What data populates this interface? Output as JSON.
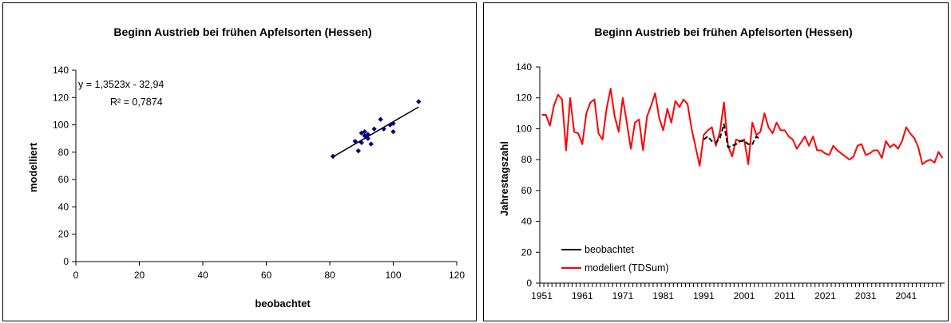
{
  "charts": [
    {
      "type": "scatter",
      "title": "Beginn Austrieb bei frühen Apfelsorten (Hessen)",
      "xlabel": "beobachtet",
      "ylabel": "modelliert",
      "xlim": [
        0,
        120
      ],
      "ylim": [
        0,
        140
      ],
      "x_ticks": [
        0,
        20,
        40,
        60,
        80,
        100,
        120
      ],
      "y_ticks": [
        0,
        20,
        40,
        60,
        80,
        100,
        120,
        140
      ],
      "points": [
        [
          81,
          77
        ],
        [
          88,
          88
        ],
        [
          89,
          81
        ],
        [
          90,
          94
        ],
        [
          90,
          87
        ],
        [
          91,
          95
        ],
        [
          91,
          92
        ],
        [
          92,
          93
        ],
        [
          92,
          90
        ],
        [
          93,
          86
        ],
        [
          94,
          97
        ],
        [
          96,
          104
        ],
        [
          97,
          97
        ],
        [
          99,
          100
        ],
        [
          100,
          95
        ],
        [
          100,
          101
        ],
        [
          108,
          117
        ]
      ],
      "trendline": {
        "slope": 1.3523,
        "intercept": -32.94,
        "x_range": [
          81,
          108
        ]
      },
      "equation_label": "y = 1,3523x - 32,94",
      "r2_label": "R² = 0,7874",
      "marker_color": "#000080",
      "trend_color": "#000000"
    },
    {
      "type": "line",
      "title": "Beginn Austrieb bei frühen Apfelsorten (Hessen)",
      "xlabel": "",
      "ylabel": "Jahrestagszahl",
      "xlim": [
        1951,
        2050
      ],
      "ylim": [
        0,
        140
      ],
      "x_ticks": [
        1951,
        1961,
        1971,
        1981,
        1991,
        2001,
        2011,
        2021,
        2031,
        2041
      ],
      "y_ticks": [
        0,
        20,
        40,
        60,
        80,
        100,
        120,
        140
      ],
      "legend_position": "bottom-left",
      "series": [
        {
          "name": "beobachtet",
          "color": "#000000",
          "style": "dashed",
          "start_year": 1991,
          "values": [
            93,
            95,
            92,
            91,
            94,
            103,
            88,
            89,
            90,
            92,
            92,
            90,
            90,
            95,
            93
          ]
        },
        {
          "name": "modeliert (TDSum)",
          "color": "#ff0000",
          "style": "solid",
          "start_year": 1951,
          "values": [
            109,
            109,
            102,
            115,
            122,
            119,
            86,
            120,
            98,
            97,
            90,
            110,
            117,
            119,
            97,
            93,
            113,
            126,
            108,
            98,
            120,
            104,
            87,
            104,
            106,
            86,
            108,
            115,
            123,
            107,
            99,
            113,
            104,
            118,
            114,
            119,
            116,
            100,
            88,
            76,
            96,
            99,
            101,
            89,
            98,
            117,
            89,
            82,
            93,
            92,
            93,
            77,
            104,
            96,
            98,
            110,
            101,
            97,
            104,
            99,
            99,
            95,
            93,
            87,
            91,
            95,
            89,
            95,
            86,
            86,
            84,
            83,
            89,
            86,
            84,
            82,
            80,
            82,
            89,
            90,
            83,
            84,
            86,
            86,
            81,
            92,
            88,
            90,
            87,
            92,
            101,
            97,
            94,
            88,
            77,
            79,
            80,
            78,
            85,
            81
          ]
        }
      ]
    }
  ]
}
